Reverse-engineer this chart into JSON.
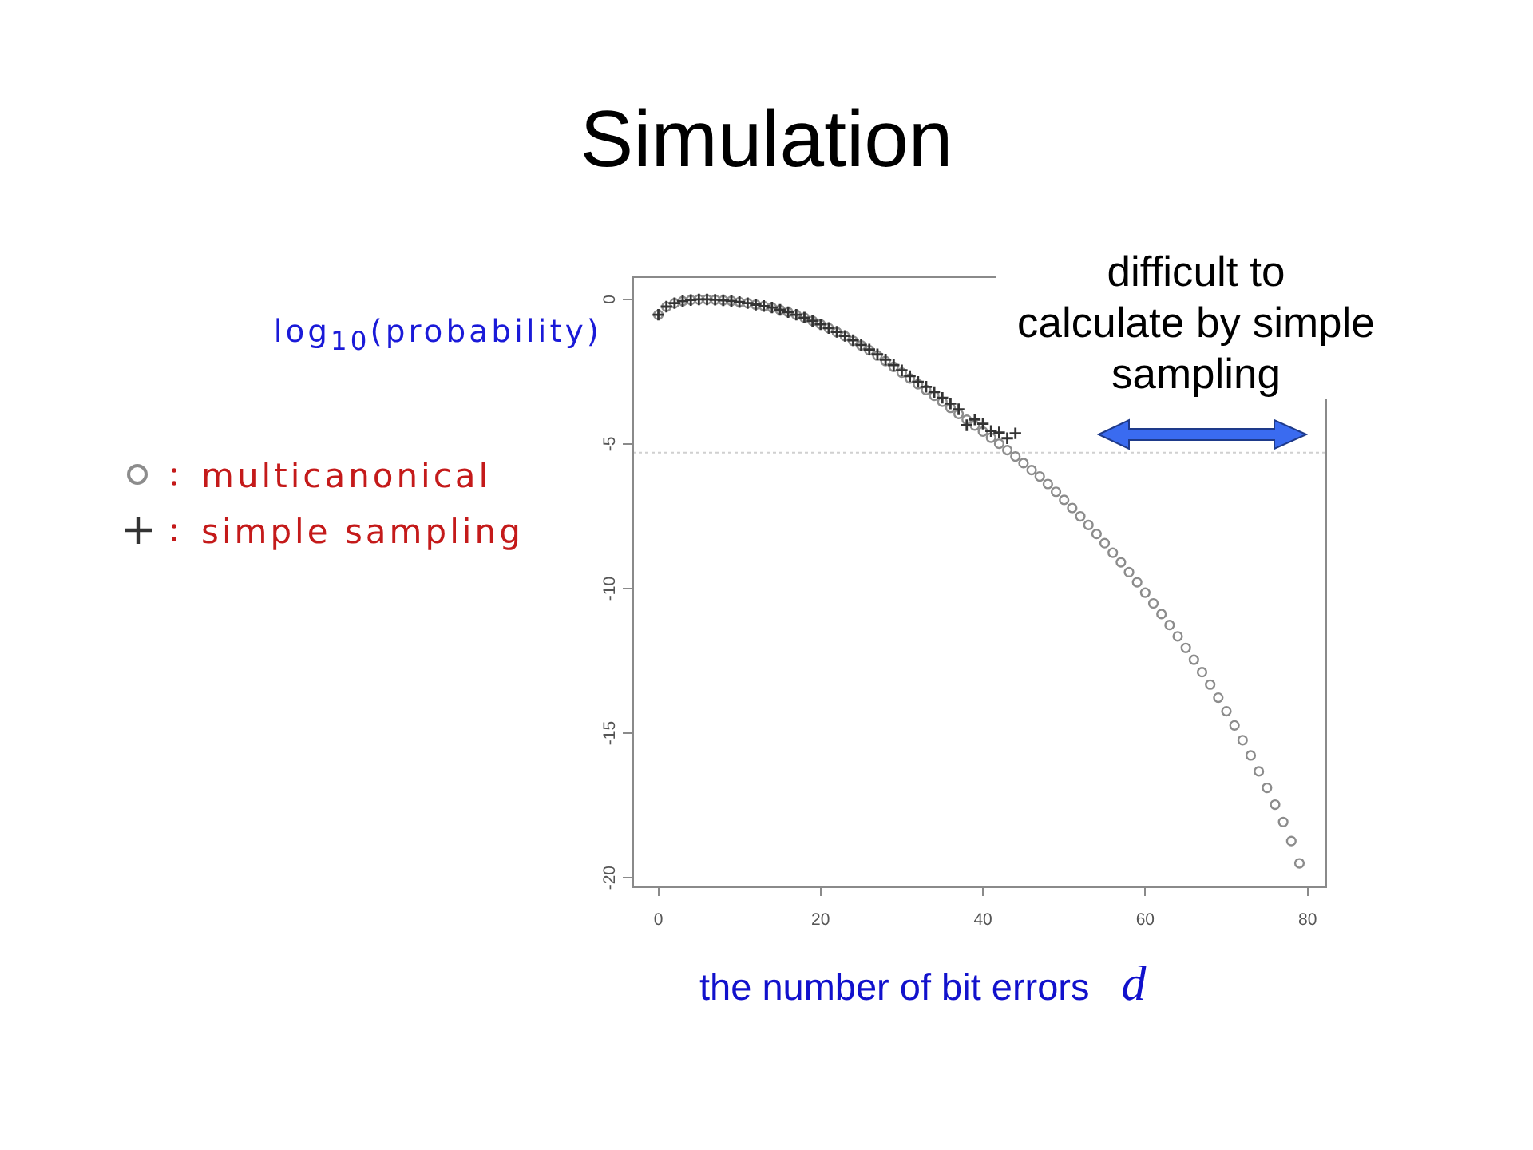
{
  "chart_data": {
    "type": "scatter",
    "title": "Simulation",
    "xlabel": "the number of bit errors d",
    "ylabel": "log$_{10}$(probability)",
    "annotations": [
      "difficult to\ncalculate by simple\nsampling"
    ],
    "x": [
      0,
      1,
      2,
      3,
      4,
      5,
      6,
      7,
      8,
      9,
      10,
      11,
      12,
      13,
      14,
      15,
      16,
      17,
      18,
      19,
      20,
      21,
      22,
      23,
      24,
      25,
      26,
      27,
      28,
      29,
      30,
      31,
      32,
      33,
      34,
      35,
      36,
      37,
      38,
      39,
      40,
      41,
      42,
      43,
      44,
      45,
      46,
      47,
      48,
      49,
      50,
      51,
      52,
      53,
      54,
      55,
      56,
      57,
      58,
      59,
      60,
      61,
      62,
      63,
      64,
      65,
      66,
      67,
      68,
      69,
      70,
      71,
      72,
      73,
      74,
      75,
      76,
      77,
      78,
      79
    ],
    "xlim": [
      -3.2,
      82.2
    ],
    "xticks": [
      0,
      20,
      40,
      60,
      80
    ],
    "ylim": [
      -20.3,
      0.8
    ],
    "yticks": [
      -20,
      -15,
      -10,
      -5,
      0
    ],
    "grid": false,
    "legend": "left",
    "ref_lines": [
      {
        "axis": "y",
        "value": -5.3,
        "color": "#d0d0d0",
        "line_style": "dotted"
      }
    ],
    "series": [
      {
        "name": "multicanonical",
        "color": "#8c8c8c",
        "marker": "circle",
        "values": [
          -0.53,
          -0.25,
          -0.13,
          -0.06,
          -0.02,
          0.0,
          0.0,
          -0.01,
          -0.03,
          -0.05,
          -0.09,
          -0.13,
          -0.18,
          -0.23,
          -0.28,
          -0.36,
          -0.44,
          -0.53,
          -0.63,
          -0.74,
          -0.86,
          -0.99,
          -1.13,
          -1.27,
          -1.43,
          -1.59,
          -1.76,
          -1.94,
          -2.13,
          -2.33,
          -2.53,
          -2.73,
          -2.93,
          -3.13,
          -3.33,
          -3.54,
          -3.75,
          -3.96,
          -4.16,
          -4.36,
          -4.57,
          -4.78,
          -4.99,
          -5.21,
          -5.43,
          -5.66,
          -5.9,
          -6.12,
          -6.38,
          -6.65,
          -6.93,
          -7.21,
          -7.5,
          -7.8,
          -8.11,
          -8.43,
          -8.76,
          -9.09,
          -9.43,
          -9.78,
          -10.14,
          -10.51,
          -10.88,
          -11.26,
          -11.65,
          -12.05,
          -12.46,
          -12.89,
          -13.32,
          -13.77,
          -14.24,
          -14.73,
          -15.24,
          -15.77,
          -16.32,
          -16.89,
          -17.47,
          -18.07,
          -18.73,
          -19.5
        ]
      },
      {
        "name": "simple sampling",
        "color": "#333333",
        "marker": "cross",
        "x": [
          0,
          1,
          2,
          3,
          4,
          5,
          6,
          7,
          8,
          9,
          10,
          11,
          12,
          13,
          14,
          15,
          16,
          17,
          18,
          19,
          20,
          21,
          22,
          23,
          24,
          25,
          26,
          27,
          28,
          29,
          30,
          31,
          32,
          33,
          34,
          35,
          36,
          37,
          38,
          39,
          40,
          41,
          42,
          43,
          44
        ],
        "values": [
          -0.53,
          -0.25,
          -0.13,
          -0.06,
          -0.02,
          0.0,
          0.0,
          -0.01,
          -0.03,
          -0.05,
          -0.09,
          -0.13,
          -0.18,
          -0.23,
          -0.28,
          -0.36,
          -0.44,
          -0.53,
          -0.63,
          -0.74,
          -0.86,
          -0.99,
          -1.12,
          -1.26,
          -1.41,
          -1.57,
          -1.73,
          -1.9,
          -2.08,
          -2.27,
          -2.45,
          -2.65,
          -2.85,
          -3.02,
          -3.2,
          -3.4,
          -3.6,
          -3.8,
          -4.35,
          -4.15,
          -4.3,
          -4.55,
          -4.6,
          -4.8,
          -4.63
        ]
      }
    ]
  }
}
